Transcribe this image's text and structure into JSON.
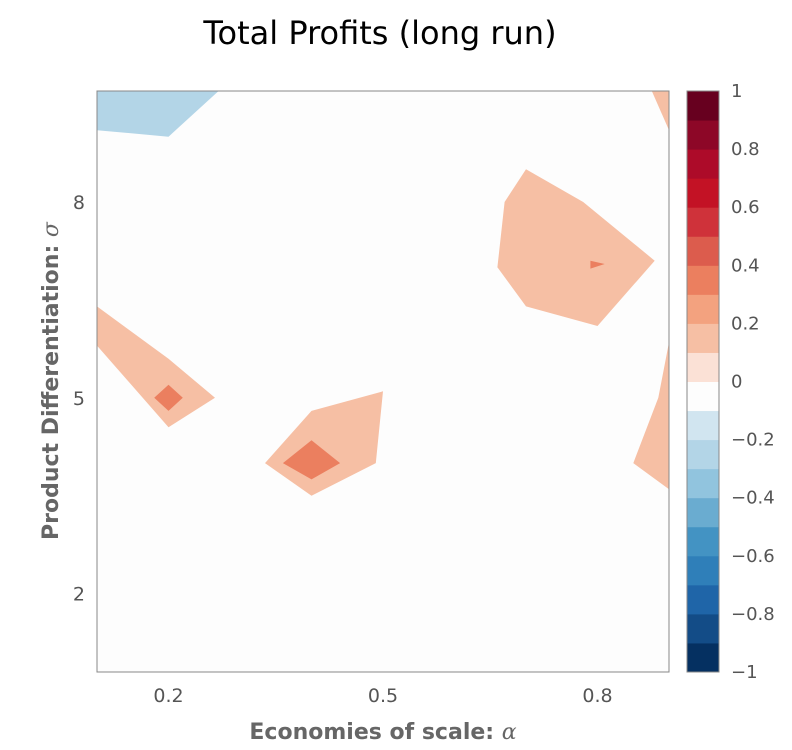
{
  "chart_data": {
    "type": "contour",
    "title": "Total Profits (long run)",
    "xlabel": "Economies of scale:",
    "xlabel_symbol": "α",
    "ylabel": "Product Differentiation:",
    "ylabel_symbol": "σ",
    "xlim": [
      0.1,
      0.9
    ],
    "ylim": [
      0.8,
      9.7
    ],
    "xticks": [
      "0.2",
      "0.5",
      "0.8"
    ],
    "xtick_values": [
      0.2,
      0.5,
      0.8
    ],
    "yticks": [
      "2",
      "5",
      "8"
    ],
    "ytick_values": [
      2,
      5,
      8
    ],
    "colorbar": {
      "range": [
        -1,
        1
      ],
      "levels": [
        -1,
        -0.9,
        -0.8,
        -0.7,
        -0.6,
        -0.5,
        -0.4,
        -0.3,
        -0.2,
        -0.1,
        0,
        0.1,
        0.2,
        0.3,
        0.4,
        0.5,
        0.6,
        0.7,
        0.8,
        0.9,
        1
      ],
      "colors": [
        "#053061",
        "#134c87",
        "#1f65a8",
        "#2f7fb9",
        "#4393c3",
        "#6aacd0",
        "#91c4de",
        "#b3d5e7",
        "#d1e5f0",
        "#fdfdfd",
        "#fbe1d6",
        "#f6bfa4",
        "#f3a27f",
        "#eb7f5f",
        "#dc5c4d",
        "#cf323a",
        "#c31225",
        "#ad0b29",
        "#8d0727",
        "#67001f"
      ],
      "tick_labels": [
        "1",
        "0.8",
        "0.6",
        "0.4",
        "0.2",
        "0",
        "−0.2",
        "−0.4",
        "−0.6",
        "−0.8",
        "−1"
      ],
      "tick_values": [
        1,
        0.8,
        0.6,
        0.4,
        0.2,
        0,
        -0.2,
        -0.4,
        -0.6,
        -0.8,
        -1
      ]
    },
    "regions": [
      {
        "level": -0.3,
        "points": [
          [
            0.1,
            9.7
          ],
          [
            0.256,
            9.7
          ],
          [
            0.199,
            9.2
          ],
          [
            0.1,
            9.2
          ]
        ]
      },
      {
        "level": -0.2,
        "points": [
          [
            0.1,
            9.7
          ],
          [
            0.27,
            9.7
          ],
          [
            0.2,
            9.0
          ],
          [
            0.1,
            9.1
          ]
        ]
      },
      {
        "level": 0.15,
        "points": [
          [
            0.1,
            6.4
          ],
          [
            0.2,
            5.6
          ],
          [
            0.265,
            5.0
          ],
          [
            0.2,
            4.55
          ],
          [
            0.1,
            5.8
          ]
        ]
      },
      {
        "level": 0.35,
        "points": [
          [
            0.2,
            5.2
          ],
          [
            0.22,
            5.0
          ],
          [
            0.2,
            4.8
          ],
          [
            0.18,
            5.0
          ]
        ]
      },
      {
        "level": 0.15,
        "points": [
          [
            0.4,
            4.8
          ],
          [
            0.5,
            5.1
          ],
          [
            0.49,
            4.0
          ],
          [
            0.4,
            3.5
          ],
          [
            0.335,
            4.0
          ]
        ]
      },
      {
        "level": 0.35,
        "points": [
          [
            0.4,
            4.35
          ],
          [
            0.44,
            4.0
          ],
          [
            0.4,
            3.75
          ],
          [
            0.36,
            4.0
          ]
        ]
      },
      {
        "level": 0.15,
        "points": [
          [
            0.7,
            8.5
          ],
          [
            0.78,
            8.0
          ],
          [
            0.88,
            7.1
          ],
          [
            0.8,
            6.1
          ],
          [
            0.7,
            6.4
          ],
          [
            0.66,
            7.0
          ],
          [
            0.67,
            8.0
          ]
        ]
      },
      {
        "level": 0.35,
        "points": [
          [
            0.79,
            7.1
          ],
          [
            0.81,
            7.05
          ],
          [
            0.79,
            6.98
          ]
        ]
      },
      {
        "level": 0.15,
        "points": [
          [
            0.9,
            5.85
          ],
          [
            0.9,
            3.6
          ],
          [
            0.85,
            4.0
          ],
          [
            0.885,
            5.0
          ]
        ]
      },
      {
        "level": 0.15,
        "points": [
          [
            0.876,
            9.7
          ],
          [
            0.9,
            9.7
          ],
          [
            0.9,
            9.1
          ]
        ]
      }
    ]
  }
}
